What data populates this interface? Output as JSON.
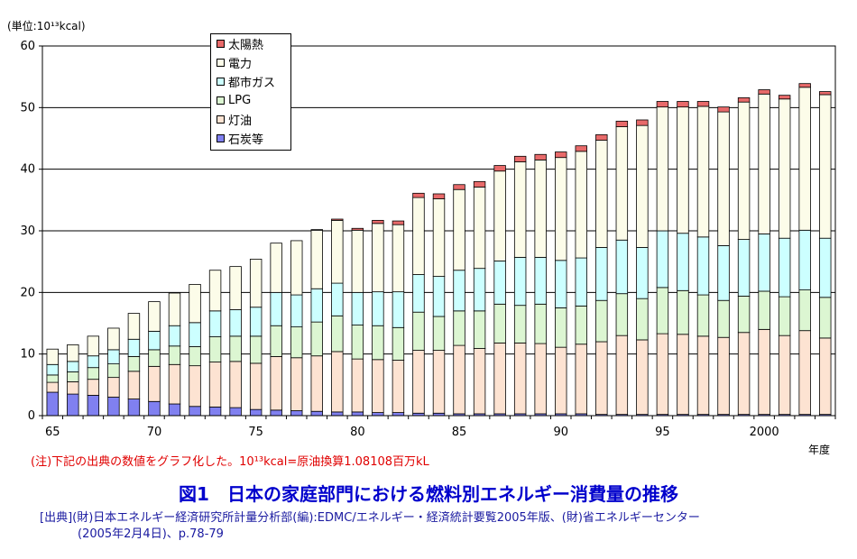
{
  "chart_data": {
    "type": "bar",
    "stacked": true,
    "unit_label": "(単位:10¹³kcal)",
    "x_unit_label": "年度",
    "categories": [
      1965,
      1966,
      1967,
      1968,
      1969,
      1970,
      1971,
      1972,
      1973,
      1974,
      1975,
      1976,
      1977,
      1978,
      1979,
      1980,
      1981,
      1982,
      1983,
      1984,
      1985,
      1986,
      1987,
      1988,
      1989,
      1990,
      1991,
      1992,
      1993,
      1994,
      1995,
      1996,
      1997,
      1998,
      1999,
      2000,
      2001,
      2002,
      2003
    ],
    "x_tick_labels": [
      {
        "x": 1965,
        "label": "65"
      },
      {
        "x": 1970,
        "label": "70"
      },
      {
        "x": 1975,
        "label": "75"
      },
      {
        "x": 1980,
        "label": "80"
      },
      {
        "x": 1985,
        "label": "85"
      },
      {
        "x": 1990,
        "label": "90"
      },
      {
        "x": 1995,
        "label": "95"
      },
      {
        "x": 2000,
        "label": "2000"
      }
    ],
    "ylim": [
      0,
      60
    ],
    "yticks": [
      0,
      10,
      20,
      30,
      40,
      50,
      60
    ],
    "grid": true,
    "legend_position": "top-left",
    "legend_order": [
      5,
      4,
      3,
      2,
      1,
      0
    ],
    "series": [
      {
        "name": "石炭等",
        "color": "#8080f0",
        "values": [
          3.8,
          3.5,
          3.3,
          3.0,
          2.7,
          2.3,
          1.9,
          1.5,
          1.4,
          1.3,
          1.0,
          0.9,
          0.8,
          0.7,
          0.6,
          0.6,
          0.5,
          0.5,
          0.4,
          0.4,
          0.3,
          0.3,
          0.3,
          0.3,
          0.3,
          0.3,
          0.3,
          0.2,
          0.2,
          0.2,
          0.2,
          0.2,
          0.2,
          0.2,
          0.2,
          0.2,
          0.2,
          0.2,
          0.2
        ]
      },
      {
        "name": "灯油",
        "color": "#fde3d2",
        "values": [
          1.6,
          2.0,
          2.6,
          3.2,
          4.5,
          5.7,
          6.4,
          6.6,
          7.3,
          7.5,
          7.5,
          8.7,
          8.6,
          9.0,
          9.8,
          8.6,
          8.6,
          8.5,
          10.2,
          10.2,
          11.1,
          10.6,
          11.5,
          11.5,
          11.4,
          10.8,
          11.3,
          11.8,
          12.8,
          12.1,
          13.1,
          13.0,
          12.7,
          12.5,
          13.3,
          13.8,
          12.8,
          13.6,
          12.4
        ]
      },
      {
        "name": "LPG",
        "color": "#dcf6d2",
        "values": [
          1.2,
          1.6,
          1.9,
          2.2,
          2.4,
          2.7,
          3.0,
          3.1,
          4.1,
          4.1,
          4.4,
          5.0,
          5.0,
          5.5,
          5.8,
          5.5,
          5.5,
          5.3,
          6.2,
          5.5,
          5.6,
          6.1,
          6.3,
          6.1,
          6.4,
          6.4,
          6.2,
          6.7,
          6.8,
          6.7,
          7.5,
          7.1,
          6.7,
          6.0,
          5.9,
          6.2,
          6.3,
          6.6,
          6.6
        ]
      },
      {
        "name": "都市ガス",
        "color": "#ccffff",
        "values": [
          1.7,
          1.7,
          1.9,
          2.3,
          2.8,
          3.0,
          3.3,
          3.9,
          4.2,
          4.3,
          4.7,
          5.4,
          5.2,
          5.4,
          5.3,
          5.3,
          5.5,
          5.8,
          6.1,
          6.5,
          6.6,
          6.9,
          7.0,
          7.8,
          7.6,
          7.7,
          7.8,
          8.6,
          8.7,
          8.3,
          9.2,
          9.3,
          9.4,
          8.9,
          9.2,
          9.3,
          9.5,
          9.7,
          9.6
        ]
      },
      {
        "name": "電力",
        "color": "#fcfce9",
        "values": [
          2.5,
          2.7,
          3.2,
          3.5,
          4.2,
          4.8,
          5.3,
          6.2,
          6.6,
          7.0,
          7.8,
          8.0,
          8.8,
          9.5,
          10.2,
          10.1,
          11.1,
          10.9,
          12.5,
          12.6,
          13.1,
          13.2,
          14.6,
          15.5,
          15.8,
          16.7,
          17.3,
          17.4,
          18.4,
          19.8,
          20.1,
          20.5,
          21.2,
          21.7,
          22.3,
          22.7,
          22.6,
          23.2,
          23.3
        ]
      },
      {
        "name": "太陽熱",
        "color": "#e86a6a",
        "values": [
          0,
          0,
          0,
          0,
          0,
          0,
          0,
          0,
          0,
          0,
          0,
          0,
          0,
          0.1,
          0.2,
          0.3,
          0.5,
          0.6,
          0.7,
          0.8,
          0.8,
          0.9,
          0.9,
          0.9,
          0.9,
          0.9,
          0.9,
          0.9,
          0.9,
          0.9,
          0.9,
          0.9,
          0.8,
          0.8,
          0.7,
          0.7,
          0.6,
          0.6,
          0.5
        ]
      }
    ]
  },
  "note": "(注)下記の出典の数値をグラフ化した。10¹³kcal=原油換算1.08108百万kL",
  "figure_title": "図1　日本の家庭部門における燃料別エネルギー消費量の推移",
  "source_line1": "[出典](財)日本エネルギー経済研究所計量分析部(編):EDMC/エネルギー・経済統計要覧2005年版、(財)省エネルギーセンター",
  "source_line2": "(2005年2月4日)、p.78-79"
}
